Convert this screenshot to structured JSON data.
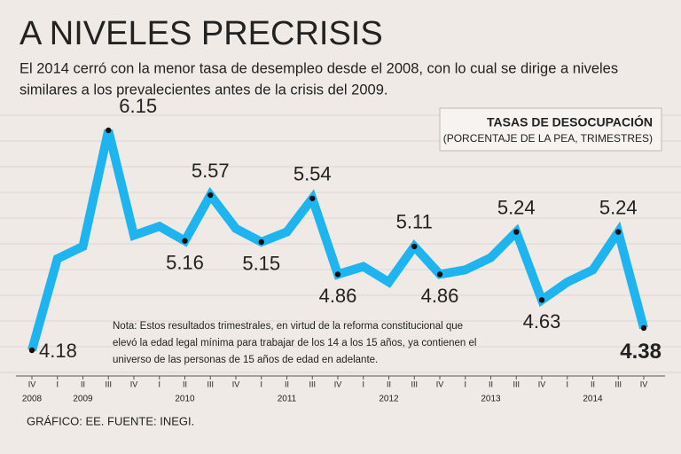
{
  "chart_data": {
    "type": "line",
    "title": "A NIVELES PRECRISIS",
    "subtitle": [
      "El 2014 cerró con la menor tasa de desempleo desde el 2008, con lo cual se dirige a niveles",
      "similares a los prevalecientes antes de la crisis del 2009."
    ],
    "legend_title": "TASAS DE DESOCUPACIÓN",
    "legend_subtitle": "(PORCENTAJE DE LA PEA, TRIMESTRES)",
    "note": [
      "Nota: Estos resultados trimestrales, en virtud de la reforma constitucional que",
      "elevó la edad legal mínima para trabajar de los 14 a los 15 años, ya contienen el",
      "universo de las personas de 15 años de edad en adelante."
    ],
    "source": "GRÁFICO: EE. FUENTE: INEGI.",
    "categories": [
      "IV",
      "I",
      "II",
      "III",
      "IV",
      "I",
      "II",
      "III",
      "IV",
      "I",
      "II",
      "III",
      "IV",
      "I",
      "II",
      "III",
      "IV",
      "I",
      "II",
      "III",
      "IV",
      "I",
      "II",
      "III",
      "IV"
    ],
    "year_labels": [
      "2008",
      null,
      "2009",
      null,
      null,
      null,
      "2010",
      null,
      null,
      null,
      "2011",
      null,
      null,
      null,
      "2012",
      null,
      null,
      null,
      "2013",
      null,
      null,
      null,
      "2014",
      null,
      null
    ],
    "series": [
      {
        "name": "Tasa de desocupación",
        "color": "#1eb4f0",
        "values": [
          4.18,
          5.0,
          5.11,
          6.15,
          5.21,
          5.29,
          5.16,
          5.57,
          5.27,
          5.15,
          5.24,
          5.54,
          4.86,
          4.93,
          4.79,
          5.11,
          4.86,
          4.9,
          5.01,
          5.24,
          4.63,
          4.79,
          4.9,
          5.24,
          4.38
        ],
        "value_labels": [
          "4.18",
          null,
          null,
          "6.15",
          null,
          null,
          "5.16",
          "5.57",
          null,
          "5.15",
          null,
          "5.54",
          "4.86",
          null,
          null,
          "5.11",
          "4.86",
          null,
          null,
          "5.24",
          "4.63",
          null,
          null,
          "5.24",
          "4.38"
        ]
      }
    ]
  }
}
